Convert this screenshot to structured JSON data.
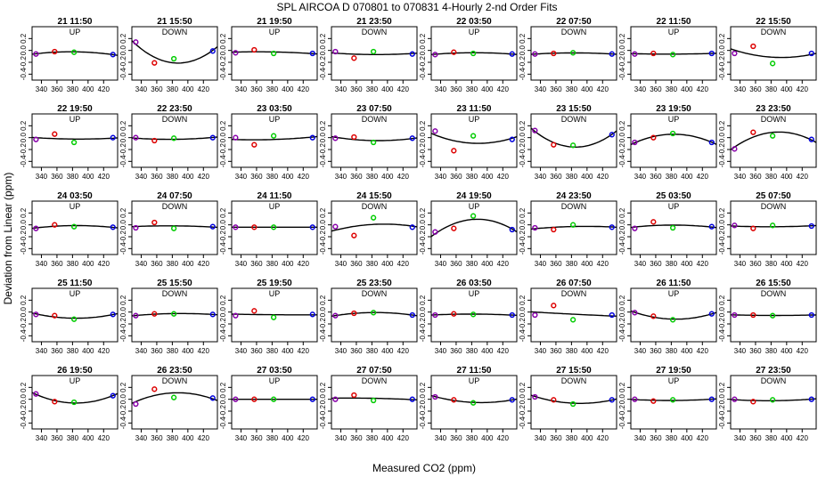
{
  "figure": {
    "title": "SPL   AIRCOA D   070801 to 070831   4-Hourly 2-nd Order Fits",
    "ylabel": "Deviation from Linear (ppm)",
    "xlabel": "Measured CO2 (ppm)"
  },
  "chart_data": {
    "type": "scatter",
    "xlim": [
      328,
      438
    ],
    "ylim": [
      -0.5,
      0.4
    ],
    "x_ticks": [
      "340",
      "360",
      "380",
      "400",
      "420"
    ],
    "y_ticks": [
      "-0.4",
      "-0.2",
      "0.0",
      "0.2"
    ],
    "series_colors": {
      "std1": "#8800aa",
      "std2": "#dd0000",
      "std3": "#00cc00",
      "std4": "#0000dd"
    },
    "std_x": [
      333,
      357,
      382,
      432
    ],
    "panels": [
      {
        "title": "21 11:50",
        "direction": "UP",
        "points": [
          -0.06,
          -0.02,
          -0.03,
          -0.07
        ]
      },
      {
        "title": "21 15:50",
        "direction": "DOWN",
        "points": [
          0.14,
          -0.21,
          -0.14,
          -0.01
        ]
      },
      {
        "title": "21 19:50",
        "direction": "UP",
        "points": [
          -0.04,
          0.01,
          -0.05,
          -0.05
        ]
      },
      {
        "title": "21 23:50",
        "direction": "DOWN",
        "points": [
          -0.02,
          -0.13,
          -0.02,
          -0.06
        ]
      },
      {
        "title": "22 03:50",
        "direction": "UP",
        "points": [
          -0.07,
          -0.03,
          -0.05,
          -0.06
        ]
      },
      {
        "title": "22 07:50",
        "direction": "DOWN",
        "points": [
          -0.06,
          -0.05,
          -0.04,
          -0.06
        ]
      },
      {
        "title": "22 11:50",
        "direction": "UP",
        "points": [
          -0.06,
          -0.05,
          -0.07,
          -0.05
        ]
      },
      {
        "title": "22 15:50",
        "direction": "DOWN",
        "points": [
          -0.05,
          0.07,
          -0.22,
          -0.05
        ]
      },
      {
        "title": "22 19:50",
        "direction": "UP",
        "points": [
          -0.03,
          0.06,
          -0.08,
          0.0
        ]
      },
      {
        "title": "22 23:50",
        "direction": "DOWN",
        "points": [
          0.0,
          -0.05,
          -0.01,
          0.0
        ]
      },
      {
        "title": "23 03:50",
        "direction": "UP",
        "points": [
          0.0,
          -0.12,
          0.03,
          0.0
        ]
      },
      {
        "title": "23 07:50",
        "direction": "DOWN",
        "points": [
          -0.01,
          0.01,
          -0.08,
          -0.01
        ]
      },
      {
        "title": "23 11:50",
        "direction": "UP",
        "points": [
          0.11,
          -0.22,
          0.03,
          -0.03
        ]
      },
      {
        "title": "23 15:50",
        "direction": "DOWN",
        "points": [
          0.12,
          -0.12,
          -0.13,
          0.05
        ]
      },
      {
        "title": "23 19:50",
        "direction": "UP",
        "points": [
          -0.08,
          0.0,
          0.07,
          -0.08
        ]
      },
      {
        "title": "23 23:50",
        "direction": "DOWN",
        "points": [
          -0.19,
          0.09,
          0.03,
          -0.03
        ]
      },
      {
        "title": "24 03:50",
        "direction": "UP",
        "points": [
          -0.06,
          0.0,
          -0.03,
          -0.04
        ]
      },
      {
        "title": "24 07:50",
        "direction": "DOWN",
        "points": [
          -0.05,
          0.04,
          -0.06,
          -0.03
        ]
      },
      {
        "title": "24 11:50",
        "direction": "UP",
        "points": [
          -0.04,
          -0.04,
          -0.04,
          -0.04
        ]
      },
      {
        "title": "24 15:50",
        "direction": "DOWN",
        "points": [
          -0.03,
          -0.18,
          0.12,
          -0.04
        ]
      },
      {
        "title": "24 19:50",
        "direction": "UP",
        "points": [
          -0.12,
          -0.06,
          0.15,
          -0.08
        ]
      },
      {
        "title": "24 23:50",
        "direction": "DOWN",
        "points": [
          -0.05,
          -0.08,
          0.0,
          -0.04
        ]
      },
      {
        "title": "25 03:50",
        "direction": "UP",
        "points": [
          -0.06,
          0.05,
          -0.05,
          -0.03
        ]
      },
      {
        "title": "25 07:50",
        "direction": "DOWN",
        "points": [
          -0.01,
          -0.06,
          -0.01,
          -0.02
        ]
      },
      {
        "title": "25 11:50",
        "direction": "UP",
        "points": [
          -0.04,
          -0.06,
          -0.12,
          -0.04
        ]
      },
      {
        "title": "25 15:50",
        "direction": "DOWN",
        "points": [
          -0.06,
          -0.03,
          -0.03,
          -0.04
        ]
      },
      {
        "title": "25 19:50",
        "direction": "UP",
        "points": [
          -0.06,
          0.02,
          -0.09,
          -0.04
        ]
      },
      {
        "title": "25 23:50",
        "direction": "DOWN",
        "points": [
          -0.06,
          -0.02,
          -0.01,
          -0.05
        ]
      },
      {
        "title": "26 03:50",
        "direction": "UP",
        "points": [
          -0.05,
          -0.03,
          -0.04,
          -0.05
        ]
      },
      {
        "title": "26 07:50",
        "direction": "DOWN",
        "points": [
          -0.05,
          0.11,
          -0.13,
          -0.05
        ]
      },
      {
        "title": "26 11:50",
        "direction": "UP",
        "points": [
          -0.01,
          -0.07,
          -0.13,
          -0.03
        ]
      },
      {
        "title": "26 15:50",
        "direction": "DOWN",
        "points": [
          -0.05,
          -0.05,
          -0.06,
          -0.05
        ]
      },
      {
        "title": "26 19:50",
        "direction": "UP",
        "points": [
          0.09,
          -0.04,
          -0.05,
          0.06
        ]
      },
      {
        "title": "26 23:50",
        "direction": "DOWN",
        "points": [
          -0.08,
          0.17,
          0.03,
          0.02
        ]
      },
      {
        "title": "27 03:50",
        "direction": "UP",
        "points": [
          0.0,
          0.0,
          0.0,
          0.0
        ]
      },
      {
        "title": "27 07:50",
        "direction": "DOWN",
        "points": [
          0.0,
          0.07,
          -0.02,
          0.0
        ]
      },
      {
        "title": "27 11:50",
        "direction": "UP",
        "points": [
          0.04,
          -0.01,
          -0.06,
          -0.01
        ]
      },
      {
        "title": "27 15:50",
        "direction": "DOWN",
        "points": [
          0.04,
          -0.01,
          -0.08,
          -0.01
        ]
      },
      {
        "title": "27 19:50",
        "direction": "UP",
        "points": [
          0.0,
          -0.03,
          -0.01,
          0.0
        ]
      },
      {
        "title": "27 23:50",
        "direction": "DOWN",
        "points": [
          0.0,
          -0.04,
          -0.01,
          0.0
        ]
      }
    ]
  }
}
